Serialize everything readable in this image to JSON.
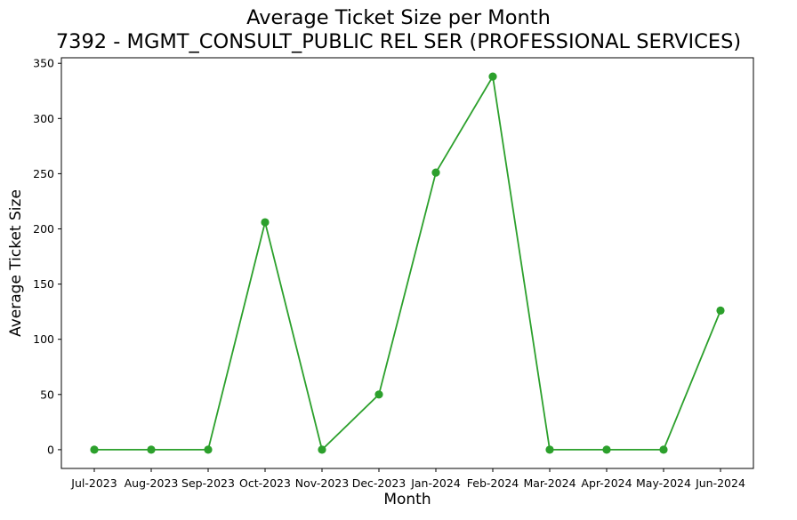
{
  "chart_data": {
    "type": "line",
    "title": "Average Ticket Size per Month",
    "subtitle": "7392 - MGMT_CONSULT_PUBLIC REL SER (PROFESSIONAL SERVICES)",
    "xlabel": "Month",
    "ylabel": "Average Ticket Size",
    "categories": [
      "Jul-2023",
      "Aug-2023",
      "Sep-2023",
      "Oct-2023",
      "Nov-2023",
      "Dec-2023",
      "Jan-2024",
      "Feb-2024",
      "Mar-2024",
      "Apr-2024",
      "May-2024",
      "Jun-2024"
    ],
    "series": [
      {
        "values": [
          0,
          0,
          0,
          206,
          0,
          50,
          251,
          338,
          0,
          0,
          0,
          126
        ]
      }
    ],
    "ylim": [
      -17,
      355
    ],
    "yticks": [
      0,
      50,
      100,
      150,
      200,
      250,
      300,
      350
    ],
    "grid": false,
    "line_color": "#2ca02c",
    "marker": "circle"
  }
}
